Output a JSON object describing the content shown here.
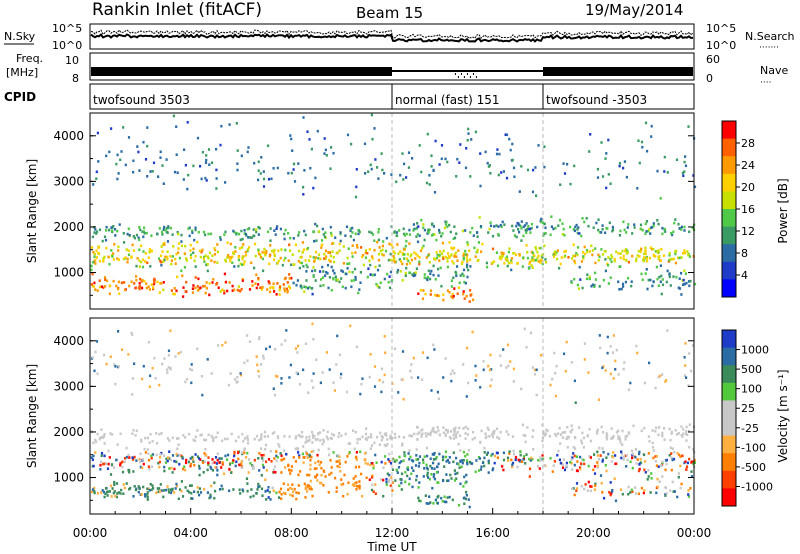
{
  "header": {
    "station": "Rankin Inlet (fitACF)",
    "beam": "Beam 15",
    "date": "19/May/2014"
  },
  "strip_labels": {
    "nsky": "N.Sky",
    "nsearch": "N.Search",
    "nsearch_dots": "·······",
    "freq_line1": "Freq.",
    "freq_line2": "[MHz]",
    "nave": "Nave",
    "nave_dots": "····",
    "cpid": "CPID",
    "noise_ticks": [
      "10^5",
      "10^0"
    ],
    "freq_ticks": [
      "10",
      "8"
    ],
    "nave_ticks": [
      "60",
      "0"
    ]
  },
  "cpid_segments": [
    {
      "label": "twofsound 3503",
      "start_h": 0
    },
    {
      "label": "normal (fast) 151",
      "start_h": 12
    },
    {
      "label": "twofsound -3503",
      "start_h": 18
    }
  ],
  "chart_data": [
    {
      "type": "heatmap",
      "panel": "power",
      "ylabel": "Slant Range [km]",
      "xlim": [
        0,
        24
      ],
      "ylim": [
        200,
        4500
      ],
      "yticks": [
        "1000",
        "2000",
        "3000",
        "4000"
      ],
      "colorbar": {
        "label": "Power [dB]",
        "ticks": [
          "28",
          "24",
          "20",
          "16",
          "12",
          "8",
          "4"
        ],
        "colors": [
          "#ff0000",
          "#ff6000",
          "#ff9a00",
          "#ffd000",
          "#c8e000",
          "#50c848",
          "#3a9a64",
          "#2c6ca4",
          "#1e3cc8",
          "#0000ff"
        ]
      }
    },
    {
      "type": "heatmap",
      "panel": "velocity",
      "ylabel": "Slant Range [km]",
      "xlabel": "Time UT",
      "xlim": [
        0,
        24
      ],
      "ylim": [
        200,
        4500
      ],
      "yticks": [
        "1000",
        "2000",
        "3000",
        "4000"
      ],
      "xticks": [
        "00:00",
        "04:00",
        "08:00",
        "12:00",
        "16:00",
        "20:00",
        "00:00"
      ],
      "colorbar": {
        "label": "Velocity [m s⁻¹]",
        "ticks": [
          "1000",
          "500",
          "100",
          "25",
          "-25",
          "-100",
          "-500",
          "-1000"
        ],
        "colors": [
          "#1e3cc8",
          "#2c6ca4",
          "#3a8a5a",
          "#52c83c",
          "#c8c8c8",
          "#c8c8c8",
          "#ffb040",
          "#ff8000",
          "#ff4000",
          "#ff0000"
        ]
      }
    }
  ]
}
